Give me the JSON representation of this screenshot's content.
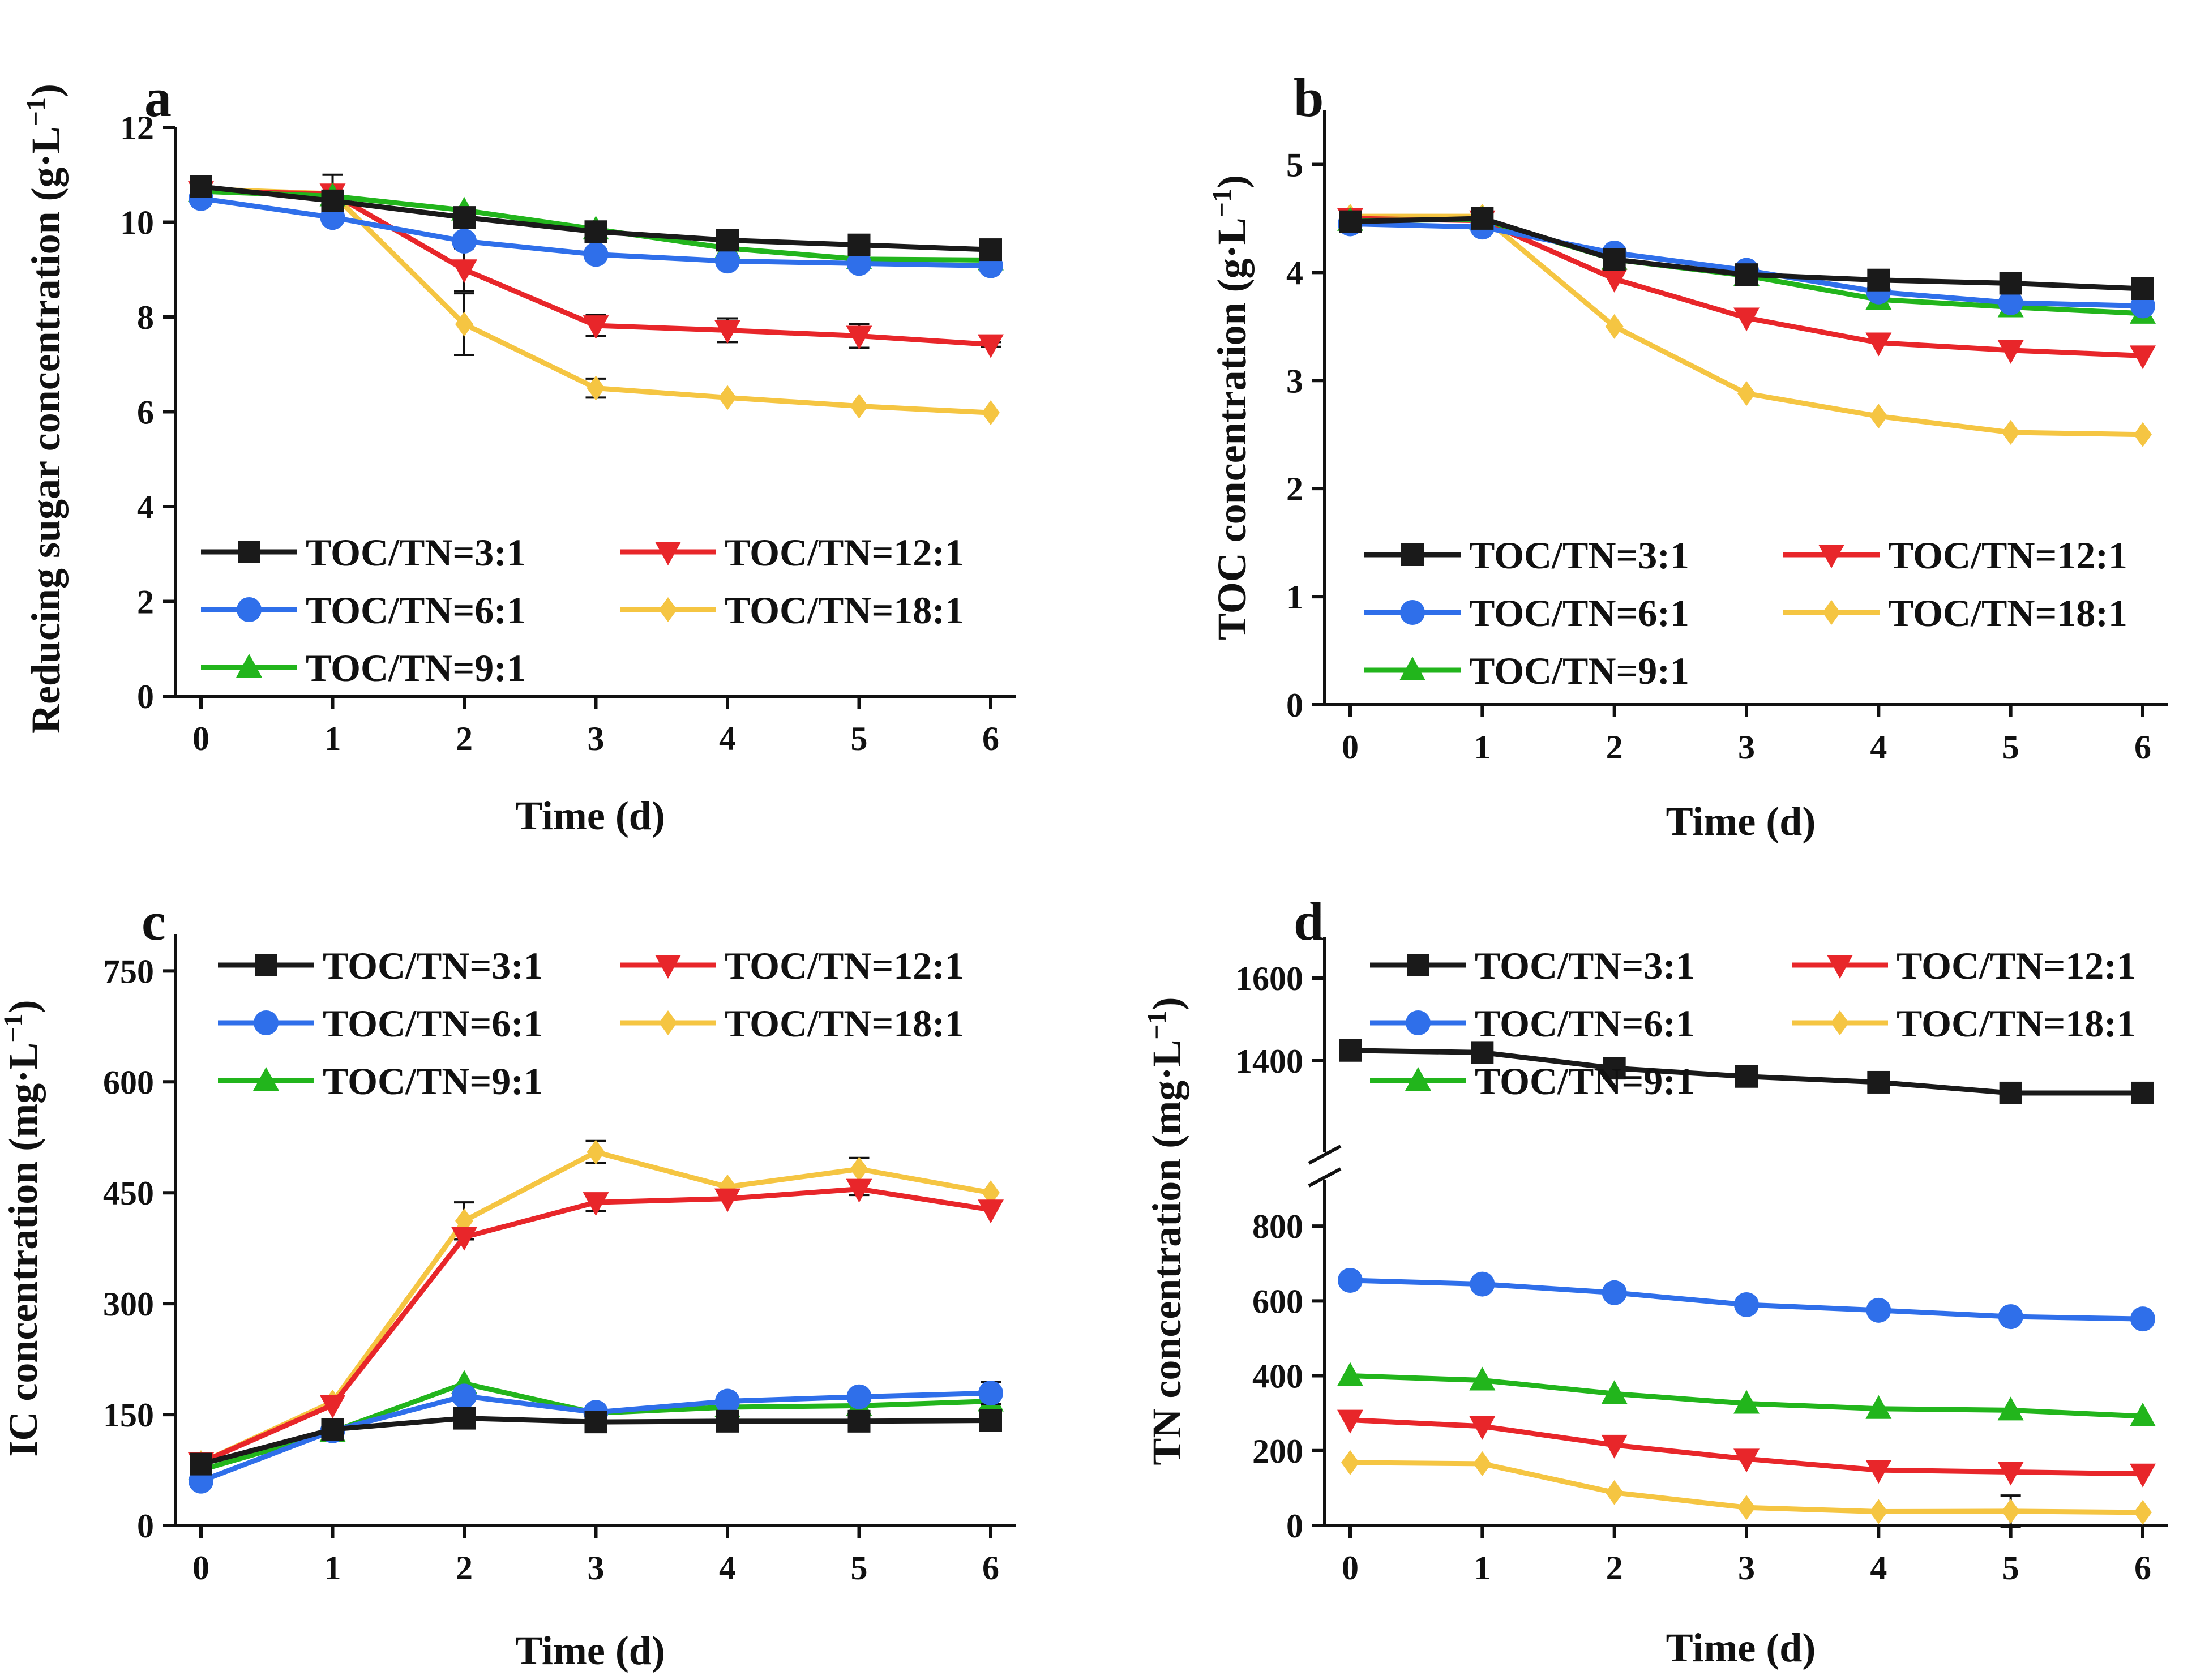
{
  "colors": {
    "TOC/TN=3:1": "#1a1a1a",
    "TOC/TN=6:1": "#2f6fea",
    "TOC/TN=9:1": "#22b51c",
    "TOC/TN=12:1": "#e8262a",
    "TOC/TN=18:1": "#f5c542"
  },
  "markers": {
    "TOC/TN=3:1": "square",
    "TOC/TN=6:1": "circle",
    "TOC/TN=9:1": "triangle-up",
    "TOC/TN=12:1": "triangle-down",
    "TOC/TN=18:1": "diamond"
  },
  "chart_data": [
    {
      "panel": "a",
      "type": "line",
      "xlabel": "Time (d)",
      "ylabel": "Reducing sugar concentration (g·L−1)",
      "ylabel_text": "Reducing sugar concentration (g·L",
      "ylabel_sup": "−1",
      "ylabel_close": ")",
      "x": [
        0,
        1,
        2,
        3,
        4,
        5,
        6
      ],
      "x_ticks": [
        "0",
        "1",
        "2",
        "3",
        "4",
        "5",
        "6"
      ],
      "ylim": [
        0,
        12
      ],
      "y_ticks": [
        0,
        2,
        4,
        6,
        8,
        10,
        12
      ],
      "y_tick_labels": [
        "0",
        "2",
        "4",
        "6",
        "8",
        "10",
        "12"
      ],
      "legend_position": "bottom-left",
      "legend_columns": [
        [
          "TOC/TN=3:1",
          "TOC/TN=6:1",
          "TOC/TN=9:1"
        ],
        [
          "TOC/TN=12:1",
          "TOC/TN=18:1"
        ]
      ],
      "series": [
        {
          "name": "TOC/TN=3:1",
          "values": [
            10.75,
            10.45,
            10.1,
            9.8,
            9.62,
            9.52,
            9.42
          ],
          "errors": [
            0.1,
            0.15,
            0.15,
            0.1,
            0.1,
            0.08,
            0.08
          ]
        },
        {
          "name": "TOC/TN=6:1",
          "values": [
            10.5,
            10.1,
            9.6,
            9.32,
            9.18,
            9.13,
            9.08
          ],
          "errors": [
            0,
            0,
            0,
            0,
            0,
            0,
            0
          ]
        },
        {
          "name": "TOC/TN=9:1",
          "values": [
            10.65,
            10.55,
            10.25,
            9.85,
            9.45,
            9.22,
            9.2
          ],
          "errors": [
            0,
            0,
            0,
            0,
            0,
            0,
            0
          ]
        },
        {
          "name": "TOC/TN=12:1",
          "values": [
            10.65,
            10.6,
            9.0,
            7.82,
            7.72,
            7.6,
            7.42
          ],
          "errors": [
            0,
            0.4,
            0.45,
            0.22,
            0.25,
            0.25,
            0.05
          ]
        },
        {
          "name": "TOC/TN=18:1",
          "values": [
            10.7,
            10.6,
            7.85,
            6.5,
            6.3,
            6.12,
            5.98
          ],
          "errors": [
            0,
            0,
            0.65,
            0.2,
            0,
            0,
            0
          ]
        }
      ]
    },
    {
      "panel": "b",
      "type": "line",
      "xlabel": "Time (d)",
      "ylabel": "TOC concentration (g·L−1)",
      "ylabel_text": "TOC concentration (g·L",
      "ylabel_sup": "−1",
      "ylabel_close": ")",
      "x": [
        0,
        1,
        2,
        3,
        4,
        5,
        6
      ],
      "x_ticks": [
        "0",
        "1",
        "2",
        "3",
        "4",
        "5",
        "6"
      ],
      "ylim": [
        0,
        5.5
      ],
      "y_ticks": [
        0,
        1,
        2,
        3,
        4,
        5
      ],
      "y_tick_labels": [
        "0",
        "1",
        "2",
        "3",
        "4",
        "5"
      ],
      "legend_position": "bottom-left",
      "legend_columns": [
        [
          "TOC/TN=3:1",
          "TOC/TN=6:1",
          "TOC/TN=9:1"
        ],
        [
          "TOC/TN=12:1",
          "TOC/TN=18:1"
        ]
      ],
      "series": [
        {
          "name": "TOC/TN=3:1",
          "values": [
            4.47,
            4.5,
            4.12,
            3.98,
            3.93,
            3.9,
            3.85
          ],
          "errors": [
            0.05,
            0.04,
            0.04,
            0.04,
            0.04,
            0.04,
            0.04
          ]
        },
        {
          "name": "TOC/TN=6:1",
          "values": [
            4.45,
            4.42,
            4.18,
            4.02,
            3.82,
            3.72,
            3.69
          ],
          "errors": [
            0,
            0,
            0,
            0,
            0,
            0,
            0
          ]
        },
        {
          "name": "TOC/TN=9:1",
          "values": [
            4.48,
            4.49,
            4.12,
            3.97,
            3.75,
            3.68,
            3.62
          ],
          "errors": [
            0,
            0,
            0,
            0,
            0,
            0,
            0
          ]
        },
        {
          "name": "TOC/TN=12:1",
          "values": [
            4.5,
            4.48,
            3.94,
            3.58,
            3.35,
            3.28,
            3.23
          ],
          "errors": [
            0,
            0,
            0,
            0,
            0,
            0,
            0
          ]
        },
        {
          "name": "TOC/TN=18:1",
          "values": [
            4.52,
            4.52,
            3.5,
            2.88,
            2.67,
            2.52,
            2.5
          ],
          "errors": [
            0,
            0,
            0,
            0,
            0,
            0,
            0
          ]
        }
      ]
    },
    {
      "panel": "c",
      "type": "line",
      "xlabel": "Time (d)",
      "ylabel": "IC concentration (mg·L−1)",
      "ylabel_text": "IC concentration (mg·L",
      "ylabel_sup": "−1",
      "ylabel_close": ")",
      "x": [
        0,
        1,
        2,
        3,
        4,
        5,
        6
      ],
      "x_ticks": [
        "0",
        "1",
        "2",
        "3",
        "4",
        "5",
        "6"
      ],
      "ylim": [
        0,
        800
      ],
      "y_ticks": [
        0,
        150,
        300,
        450,
        600,
        750
      ],
      "y_tick_labels": [
        "0",
        "150",
        "300",
        "450",
        "600",
        "750"
      ],
      "legend_position": "top-left",
      "legend_columns": [
        [
          "TOC/TN=3:1",
          "TOC/TN=6:1",
          "TOC/TN=9:1"
        ],
        [
          "TOC/TN=12:1",
          "TOC/TN=18:1"
        ]
      ],
      "series": [
        {
          "name": "TOC/TN=3:1",
          "values": [
            83,
            130,
            145,
            140,
            141,
            141,
            142
          ],
          "errors": [
            5,
            5,
            5,
            5,
            5,
            5,
            5
          ]
        },
        {
          "name": "TOC/TN=6:1",
          "values": [
            60,
            128,
            175,
            153,
            168,
            174,
            179
          ],
          "errors": [
            0,
            0,
            0,
            0,
            0,
            0,
            15
          ]
        },
        {
          "name": "TOC/TN=9:1",
          "values": [
            75,
            127,
            192,
            152,
            160,
            162,
            168
          ],
          "errors": [
            0,
            0,
            0,
            0,
            0,
            0,
            0
          ]
        },
        {
          "name": "TOC/TN=12:1",
          "values": [
            85,
            163,
            390,
            437,
            442,
            455,
            427
          ],
          "errors": [
            0,
            0,
            0,
            12,
            0,
            8,
            0
          ]
        },
        {
          "name": "TOC/TN=18:1",
          "values": [
            85,
            167,
            412,
            505,
            458,
            482,
            450
          ],
          "errors": [
            0,
            0,
            25,
            15,
            0,
            15,
            0
          ]
        }
      ]
    },
    {
      "panel": "d",
      "type": "line",
      "xlabel": "Time (d)",
      "ylabel": "TN concentration (mg·L−1)",
      "ylabel_text": "TN concentration (mg·L",
      "ylabel_sup": "−1",
      "ylabel_close": ")",
      "x": [
        0,
        1,
        2,
        3,
        4,
        5,
        6
      ],
      "x_ticks": [
        "0",
        "1",
        "2",
        "3",
        "4",
        "5",
        "6"
      ],
      "broken_axis": {
        "lower_range": [
          0,
          900
        ],
        "upper_range": [
          1200,
          1700
        ]
      },
      "y_ticks": [
        0,
        200,
        400,
        600,
        800,
        1400,
        1600
      ],
      "y_tick_labels": [
        "0",
        "200",
        "400",
        "600",
        "800",
        "1400",
        "1600"
      ],
      "legend_position": "top-left",
      "legend_columns": [
        [
          "TOC/TN=3:1",
          "TOC/TN=6:1",
          "TOC/TN=9:1"
        ],
        [
          "TOC/TN=12:1",
          "TOC/TN=18:1"
        ]
      ],
      "series": [
        {
          "name": "TOC/TN=3:1",
          "values": [
            1425,
            1420,
            1382,
            1362,
            1348,
            1322,
            1322
          ],
          "errors": [
            8,
            12,
            10,
            8,
            6,
            12,
            6
          ]
        },
        {
          "name": "TOC/TN=6:1",
          "values": [
            655,
            645,
            622,
            590,
            575,
            558,
            552
          ],
          "errors": [
            0,
            0,
            0,
            0,
            0,
            0,
            0
          ]
        },
        {
          "name": "TOC/TN=9:1",
          "values": [
            400,
            388,
            352,
            326,
            312,
            308,
            292
          ],
          "errors": [
            0,
            0,
            0,
            0,
            0,
            0,
            0
          ]
        },
        {
          "name": "TOC/TN=12:1",
          "values": [
            282,
            265,
            215,
            178,
            148,
            143,
            138
          ],
          "errors": [
            0,
            0,
            0,
            0,
            0,
            0,
            0
          ]
        },
        {
          "name": "TOC/TN=18:1",
          "values": [
            168,
            165,
            88,
            48,
            37,
            38,
            35
          ],
          "errors": [
            0,
            0,
            0,
            0,
            0,
            42,
            0
          ]
        }
      ]
    }
  ]
}
